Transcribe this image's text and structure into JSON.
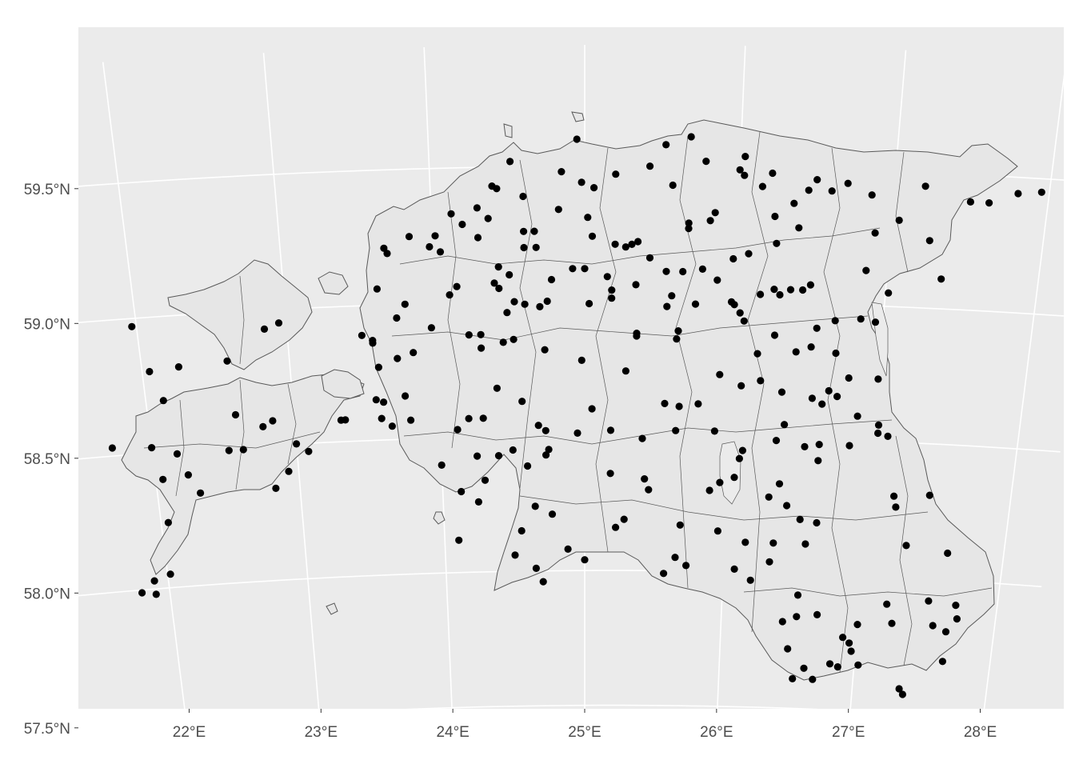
{
  "map": {
    "panel_color": "#ebebeb",
    "grid_color": "#ffffff",
    "land_fill": "#e6e6e6",
    "border_color": "#595959",
    "point_color": "#000000",
    "longitude_ticks": [
      {
        "value": 22,
        "label": "22°E"
      },
      {
        "value": 23,
        "label": "23°E"
      },
      {
        "value": 24,
        "label": "24°E"
      },
      {
        "value": 25,
        "label": "25°E"
      },
      {
        "value": 26,
        "label": "26°E"
      },
      {
        "value": 27,
        "label": "27°E"
      },
      {
        "value": 28,
        "label": "28°E"
      }
    ],
    "latitude_ticks": [
      {
        "value": 57.5,
        "label": "57.5°N"
      },
      {
        "value": 58.0,
        "label": "58.0°N"
      },
      {
        "value": 58.5,
        "label": "58.5°N"
      },
      {
        "value": 59.0,
        "label": "59.0°N"
      },
      {
        "value": 59.5,
        "label": "59.5°N"
      }
    ],
    "points": [
      [
        24.95,
        59.6
      ],
      [
        25.52,
        59.58
      ],
      [
        25.68,
        59.61
      ],
      [
        24.52,
        59.52
      ],
      [
        24.85,
        59.48
      ],
      [
        25.2,
        59.47
      ],
      [
        25.42,
        59.5
      ],
      [
        25.78,
        59.52
      ],
      [
        26.0,
        59.49
      ],
      [
        26.03,
        59.54
      ],
      [
        26.21,
        59.48
      ],
      [
        26.5,
        59.46
      ],
      [
        26.7,
        59.45
      ],
      [
        27.2,
        59.45
      ],
      [
        27.5,
        59.4
      ],
      [
        27.62,
        59.4
      ],
      [
        27.8,
        59.44
      ],
      [
        27.95,
        59.45
      ],
      [
        24.4,
        59.43
      ],
      [
        24.43,
        59.42
      ],
      [
        24.98,
        59.44
      ],
      [
        25.06,
        59.42
      ],
      [
        25.57,
        59.43
      ],
      [
        26.03,
        59.47
      ],
      [
        26.15,
        59.43
      ],
      [
        26.45,
        59.42
      ],
      [
        26.6,
        59.42
      ],
      [
        26.86,
        59.41
      ],
      [
        24.02,
        59.25
      ],
      [
        24.05,
        59.19
      ],
      [
        24.13,
        59.33
      ],
      [
        24.2,
        59.29
      ],
      [
        24.3,
        59.24
      ],
      [
        24.3,
        59.35
      ],
      [
        24.37,
        59.31
      ],
      [
        24.6,
        59.39
      ],
      [
        24.6,
        59.26
      ],
      [
        24.67,
        59.26
      ],
      [
        24.83,
        59.34
      ],
      [
        25.02,
        59.31
      ],
      [
        25.05,
        59.24
      ],
      [
        25.2,
        59.21
      ],
      [
        25.31,
        59.21
      ],
      [
        25.35,
        59.22
      ],
      [
        25.68,
        59.27
      ],
      [
        25.68,
        59.29
      ],
      [
        25.82,
        59.3
      ],
      [
        25.85,
        59.33
      ],
      [
        26.08,
        59.18
      ],
      [
        26.24,
        59.32
      ],
      [
        26.26,
        59.22
      ],
      [
        26.36,
        59.37
      ],
      [
        26.4,
        59.28
      ],
      [
        26.9,
        59.27
      ],
      [
        27.05,
        59.32
      ],
      [
        27.26,
        59.25
      ],
      [
        23.68,
        59.21
      ],
      [
        23.7,
        59.19
      ],
      [
        23.85,
        59.25
      ],
      [
        23.98,
        59.21
      ],
      [
        24.43,
        59.13
      ],
      [
        24.5,
        59.1
      ],
      [
        24.6,
        59.2
      ],
      [
        24.68,
        59.2
      ],
      [
        24.92,
        59.12
      ],
      [
        25.0,
        59.12
      ],
      [
        25.15,
        59.09
      ],
      [
        25.27,
        59.2
      ],
      [
        25.34,
        59.06
      ],
      [
        25.43,
        59.16
      ],
      [
        25.54,
        59.11
      ],
      [
        25.78,
        59.12
      ],
      [
        25.98,
        59.16
      ],
      [
        26.37,
        59.05
      ],
      [
        26.5,
        59.07
      ],
      [
        26.86,
        59.13
      ],
      [
        27.36,
        59.11
      ],
      [
        23.5,
        58.89
      ],
      [
        23.57,
        58.87
      ],
      [
        23.62,
        59.06
      ],
      [
        23.74,
        58.95
      ],
      [
        23.8,
        59.0
      ],
      [
        23.97,
        58.91
      ],
      [
        24.1,
        59.03
      ],
      [
        24.15,
        59.06
      ],
      [
        24.22,
        58.88
      ],
      [
        24.3,
        58.88
      ],
      [
        24.4,
        59.07
      ],
      [
        24.43,
        59.05
      ],
      [
        24.48,
        58.96
      ],
      [
        24.53,
        59.0
      ],
      [
        24.6,
        58.99
      ],
      [
        24.7,
        58.98
      ],
      [
        24.75,
        59.0
      ],
      [
        24.78,
        59.08
      ],
      [
        25.03,
        58.99
      ],
      [
        25.18,
        59.04
      ],
      [
        25.18,
        59.01
      ],
      [
        25.35,
        58.87
      ],
      [
        25.55,
        58.98
      ],
      [
        25.58,
        59.02
      ],
      [
        25.62,
        58.86
      ],
      [
        25.65,
        59.11
      ],
      [
        25.74,
        58.99
      ],
      [
        25.88,
        59.08
      ],
      [
        25.98,
        59.0
      ],
      [
        26.0,
        58.99
      ],
      [
        26.04,
        58.96
      ],
      [
        26.07,
        58.93
      ],
      [
        26.17,
        59.03
      ],
      [
        26.26,
        59.05
      ],
      [
        26.3,
        59.03
      ],
      [
        26.45,
        59.05
      ],
      [
        26.68,
        58.94
      ],
      [
        26.85,
        58.95
      ],
      [
        26.95,
        58.94
      ],
      [
        27.02,
        59.05
      ],
      [
        21.97,
        58.97
      ],
      [
        22.05,
        58.8
      ],
      [
        22.25,
        58.81
      ],
      [
        22.58,
        58.82
      ],
      [
        22.85,
        58.93
      ],
      [
        22.95,
        58.95
      ],
      [
        23.57,
        58.86
      ],
      [
        23.6,
        58.77
      ],
      [
        23.73,
        58.8
      ],
      [
        23.84,
        58.82
      ],
      [
        24.3,
        58.83
      ],
      [
        24.45,
        58.85
      ],
      [
        24.52,
        58.86
      ],
      [
        24.73,
        58.82
      ],
      [
        24.98,
        58.78
      ],
      [
        25.28,
        58.74
      ],
      [
        25.35,
        58.88
      ],
      [
        25.63,
        58.89
      ],
      [
        26.17,
        58.81
      ],
      [
        26.28,
        58.88
      ],
      [
        26.43,
        58.82
      ],
      [
        26.53,
        58.84
      ],
      [
        26.56,
        58.91
      ],
      [
        26.7,
        58.82
      ],
      [
        22.12,
        58.69
      ],
      [
        22.6,
        58.62
      ],
      [
        23.57,
        58.65
      ],
      [
        23.62,
        58.64
      ],
      [
        23.77,
        58.66
      ],
      [
        24.4,
        58.68
      ],
      [
        24.57,
        58.63
      ],
      [
        25.55,
        58.62
      ],
      [
        25.65,
        58.61
      ],
      [
        25.78,
        58.62
      ],
      [
        25.92,
        58.73
      ],
      [
        26.07,
        58.69
      ],
      [
        26.2,
        58.71
      ],
      [
        26.35,
        58.67
      ],
      [
        26.56,
        58.65
      ],
      [
        26.63,
        58.63
      ],
      [
        26.67,
        58.68
      ],
      [
        26.73,
        58.66
      ],
      [
        26.8,
        58.73
      ],
      [
        26.88,
        58.59
      ],
      [
        27.0,
        58.73
      ],
      [
        21.73,
        58.53
      ],
      [
        22.0,
        58.52
      ],
      [
        22.17,
        58.49
      ],
      [
        22.23,
        58.41
      ],
      [
        22.53,
        58.49
      ],
      [
        22.63,
        58.49
      ],
      [
        22.78,
        58.57
      ],
      [
        22.85,
        58.59
      ],
      [
        23.0,
        58.5
      ],
      [
        23.08,
        58.47
      ],
      [
        23.32,
        58.58
      ],
      [
        23.35,
        58.58
      ],
      [
        23.6,
        58.58
      ],
      [
        23.67,
        58.55
      ],
      [
        23.8,
        58.57
      ],
      [
        24.12,
        58.53
      ],
      [
        24.2,
        58.57
      ],
      [
        24.3,
        58.57
      ],
      [
        24.68,
        58.54
      ],
      [
        24.73,
        58.52
      ],
      [
        24.95,
        58.51
      ],
      [
        25.05,
        58.6
      ],
      [
        25.18,
        58.52
      ],
      [
        25.4,
        58.49
      ],
      [
        25.63,
        58.52
      ],
      [
        25.9,
        58.52
      ],
      [
        26.33,
        58.49
      ],
      [
        26.38,
        58.55
      ],
      [
        26.53,
        58.47
      ],
      [
        26.63,
        58.48
      ],
      [
        26.84,
        58.48
      ],
      [
        27.03,
        58.56
      ],
      [
        27.03,
        58.53
      ],
      [
        27.1,
        58.52
      ],
      [
        22.05,
        58.4
      ],
      [
        22.3,
        58.34
      ],
      [
        22.93,
        58.4
      ],
      [
        24.0,
        58.4
      ],
      [
        24.25,
        58.43
      ],
      [
        24.4,
        58.43
      ],
      [
        24.5,
        58.45
      ],
      [
        24.6,
        58.39
      ],
      [
        24.73,
        58.43
      ],
      [
        24.75,
        58.45
      ],
      [
        25.18,
        58.36
      ],
      [
        25.42,
        58.34
      ],
      [
        25.45,
        58.3
      ],
      [
        25.88,
        58.3
      ],
      [
        25.95,
        58.33
      ],
      [
        26.05,
        58.35
      ],
      [
        26.08,
        58.42
      ],
      [
        26.1,
        58.45
      ],
      [
        26.37,
        58.33
      ],
      [
        26.63,
        58.42
      ],
      [
        21.37,
        58.3
      ],
      [
        22.05,
        58.24
      ],
      [
        22.83,
        58.34
      ],
      [
        24.13,
        58.3
      ],
      [
        24.3,
        58.34
      ],
      [
        24.25,
        58.26
      ],
      [
        24.65,
        58.24
      ],
      [
        24.77,
        58.21
      ],
      [
        25.22,
        58.16
      ],
      [
        25.28,
        58.19
      ],
      [
        25.68,
        58.17
      ],
      [
        25.95,
        58.15
      ],
      [
        26.3,
        58.28
      ],
      [
        26.43,
        58.25
      ],
      [
        26.53,
        58.2
      ],
      [
        26.65,
        58.19
      ],
      [
        27.18,
        58.3
      ],
      [
        27.2,
        58.26
      ],
      [
        27.43,
        58.31
      ],
      [
        21.8,
        57.99
      ],
      [
        21.9,
        58.03
      ],
      [
        22.02,
        58.05
      ],
      [
        21.9,
        57.98
      ],
      [
        24.1,
        58.12
      ],
      [
        24.55,
        58.15
      ],
      [
        24.5,
        58.06
      ],
      [
        24.65,
        58.01
      ],
      [
        24.7,
        57.96
      ],
      [
        24.88,
        58.08
      ],
      [
        25.0,
        58.04
      ],
      [
        25.57,
        57.99
      ],
      [
        25.65,
        58.05
      ],
      [
        25.73,
        58.02
      ],
      [
        26.08,
        58.01
      ],
      [
        26.15,
        58.11
      ],
      [
        26.2,
        57.97
      ],
      [
        26.33,
        58.04
      ],
      [
        26.58,
        58.11
      ],
      [
        26.35,
        58.11
      ],
      [
        27.3,
        58.12
      ],
      [
        27.6,
        58.1
      ],
      [
        26.55,
        57.92
      ],
      [
        26.55,
        57.84
      ],
      [
        26.7,
        57.85
      ],
      [
        27.2,
        57.9
      ],
      [
        27.5,
        57.92
      ],
      [
        27.7,
        57.91
      ],
      [
        27.0,
        57.82
      ],
      [
        27.25,
        57.83
      ],
      [
        27.55,
        57.83
      ],
      [
        27.65,
        57.81
      ],
      [
        27.72,
        57.86
      ],
      [
        26.45,
        57.82
      ],
      [
        26.9,
        57.77
      ],
      [
        26.95,
        57.75
      ],
      [
        26.97,
        57.72
      ],
      [
        26.5,
        57.72
      ],
      [
        27.03,
        57.67
      ],
      [
        27.65,
        57.7
      ],
      [
        26.63,
        57.65
      ],
      [
        26.55,
        57.61
      ],
      [
        26.7,
        57.61
      ],
      [
        26.82,
        57.67
      ],
      [
        26.88,
        57.66
      ],
      [
        27.35,
        57.59
      ],
      [
        27.38,
        57.57
      ]
    ]
  }
}
